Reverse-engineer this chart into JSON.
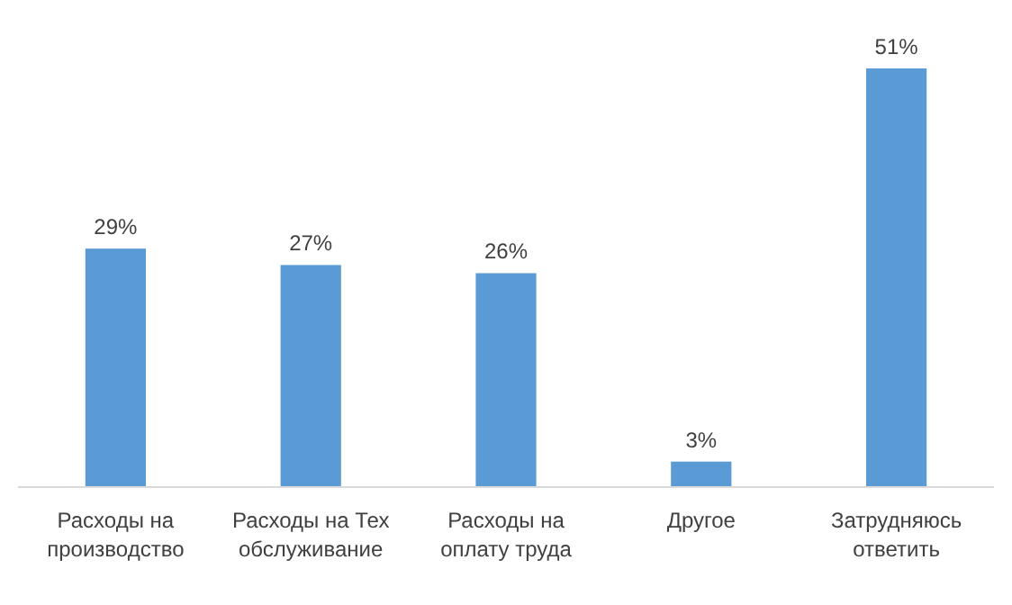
{
  "chart_data": {
    "type": "bar",
    "categories": [
      "Расходы на производство",
      "Расходы на Тех обслуживание",
      "Расходы на оплату труда",
      "Другое",
      "Затрудняюсь ответить"
    ],
    "values": [
      29,
      27,
      26,
      3,
      51
    ],
    "value_labels": [
      "29%",
      "27%",
      "26%",
      "3%",
      "51%"
    ],
    "color": "#5b9bd5"
  }
}
